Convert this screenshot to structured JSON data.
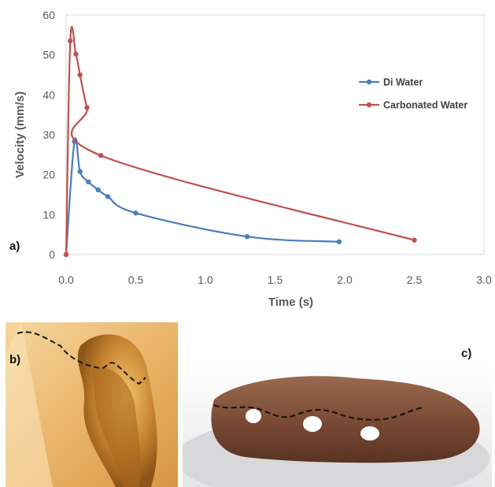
{
  "chart_data": {
    "type": "line",
    "xlabel": "Time (s)",
    "ylabel": "Velocity (mm/s)",
    "xlim": [
      0,
      3.0
    ],
    "ylim": [
      0,
      60
    ],
    "x_ticks": [
      "0.0",
      "0.5",
      "1.0",
      "1.5",
      "2.0",
      "2.5",
      "3.0"
    ],
    "y_ticks": [
      "0",
      "10",
      "20",
      "30",
      "40",
      "50",
      "60"
    ],
    "grid": false,
    "legend_position": "right",
    "series": [
      {
        "name": "Di Water",
        "color": "#4a7ebb",
        "x": [
          0,
          0.06,
          0.1,
          0.16,
          0.23,
          0.3,
          0.5,
          1.3,
          1.96
        ],
        "y": [
          0,
          28.3,
          20.8,
          18.2,
          16.2,
          14.5,
          10.4,
          4.5,
          3.2
        ]
      },
      {
        "name": "Carbonated Water",
        "color": "#c0504d",
        "x": [
          0,
          0.03,
          0.07,
          0.1,
          0.15,
          0.25,
          2.5
        ],
        "y": [
          0,
          53.5,
          50.2,
          45.0,
          36.8,
          24.8,
          3.6
        ]
      }
    ]
  },
  "panel_labels": {
    "a": "a)",
    "b": "b)",
    "c": "c)"
  },
  "photos": {
    "b_description_colors": [
      "#f3c882",
      "#c8862f"
    ],
    "c_description_colors": [
      "#7a4e3a",
      "#e9e9ea"
    ]
  }
}
